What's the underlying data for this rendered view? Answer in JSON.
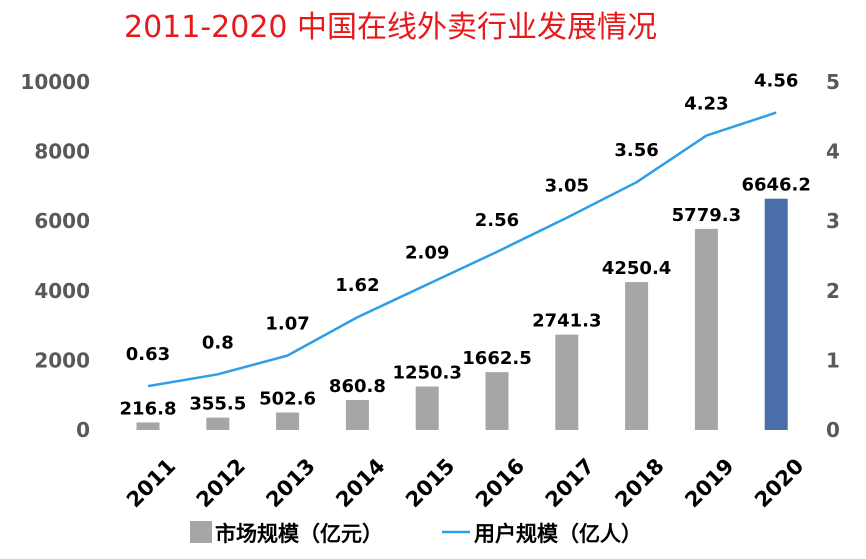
{
  "chart_data": {
    "type": "bar+line",
    "title": "2011-2020 中国在线外卖行业发展情况",
    "categories": [
      "2011",
      "2012",
      "2013",
      "2014",
      "2015",
      "2016",
      "2017",
      "2018",
      "2019",
      "2020"
    ],
    "series": [
      {
        "name": "市场规模（亿元）",
        "type": "bar",
        "axis": "left",
        "values": [
          216.8,
          355.5,
          502.6,
          860.8,
          1250.3,
          1662.5,
          2741.3,
          4250.4,
          5779.3,
          6646.2
        ],
        "labels": [
          "216.8",
          "355.5",
          "502.6",
          "860.8",
          "1250.3",
          "1662.5",
          "2741.3",
          "4250.4",
          "5779.3",
          "6646.2"
        ],
        "color": "#a6a6a6",
        "highlight_color": "#4a6ea8"
      },
      {
        "name": "用户规模（亿人）",
        "type": "line",
        "axis": "right",
        "values": [
          0.63,
          0.8,
          1.07,
          1.62,
          2.09,
          2.56,
          3.05,
          3.56,
          4.23,
          4.56
        ],
        "labels": [
          "0.63",
          "0.8",
          "1.07",
          "1.62",
          "2.09",
          "2.56",
          "3.05",
          "3.56",
          "4.23",
          "4.56"
        ],
        "color": "#2e9fe6"
      }
    ],
    "y_left": {
      "min": 0,
      "max": 10000,
      "ticks": [
        "0",
        "2000",
        "4000",
        "6000",
        "8000",
        "10000"
      ]
    },
    "y_right": {
      "min": 0,
      "max": 5,
      "ticks": [
        "0",
        "1",
        "2",
        "3",
        "4",
        "5"
      ]
    },
    "legend_position": "bottom",
    "grid": false
  }
}
